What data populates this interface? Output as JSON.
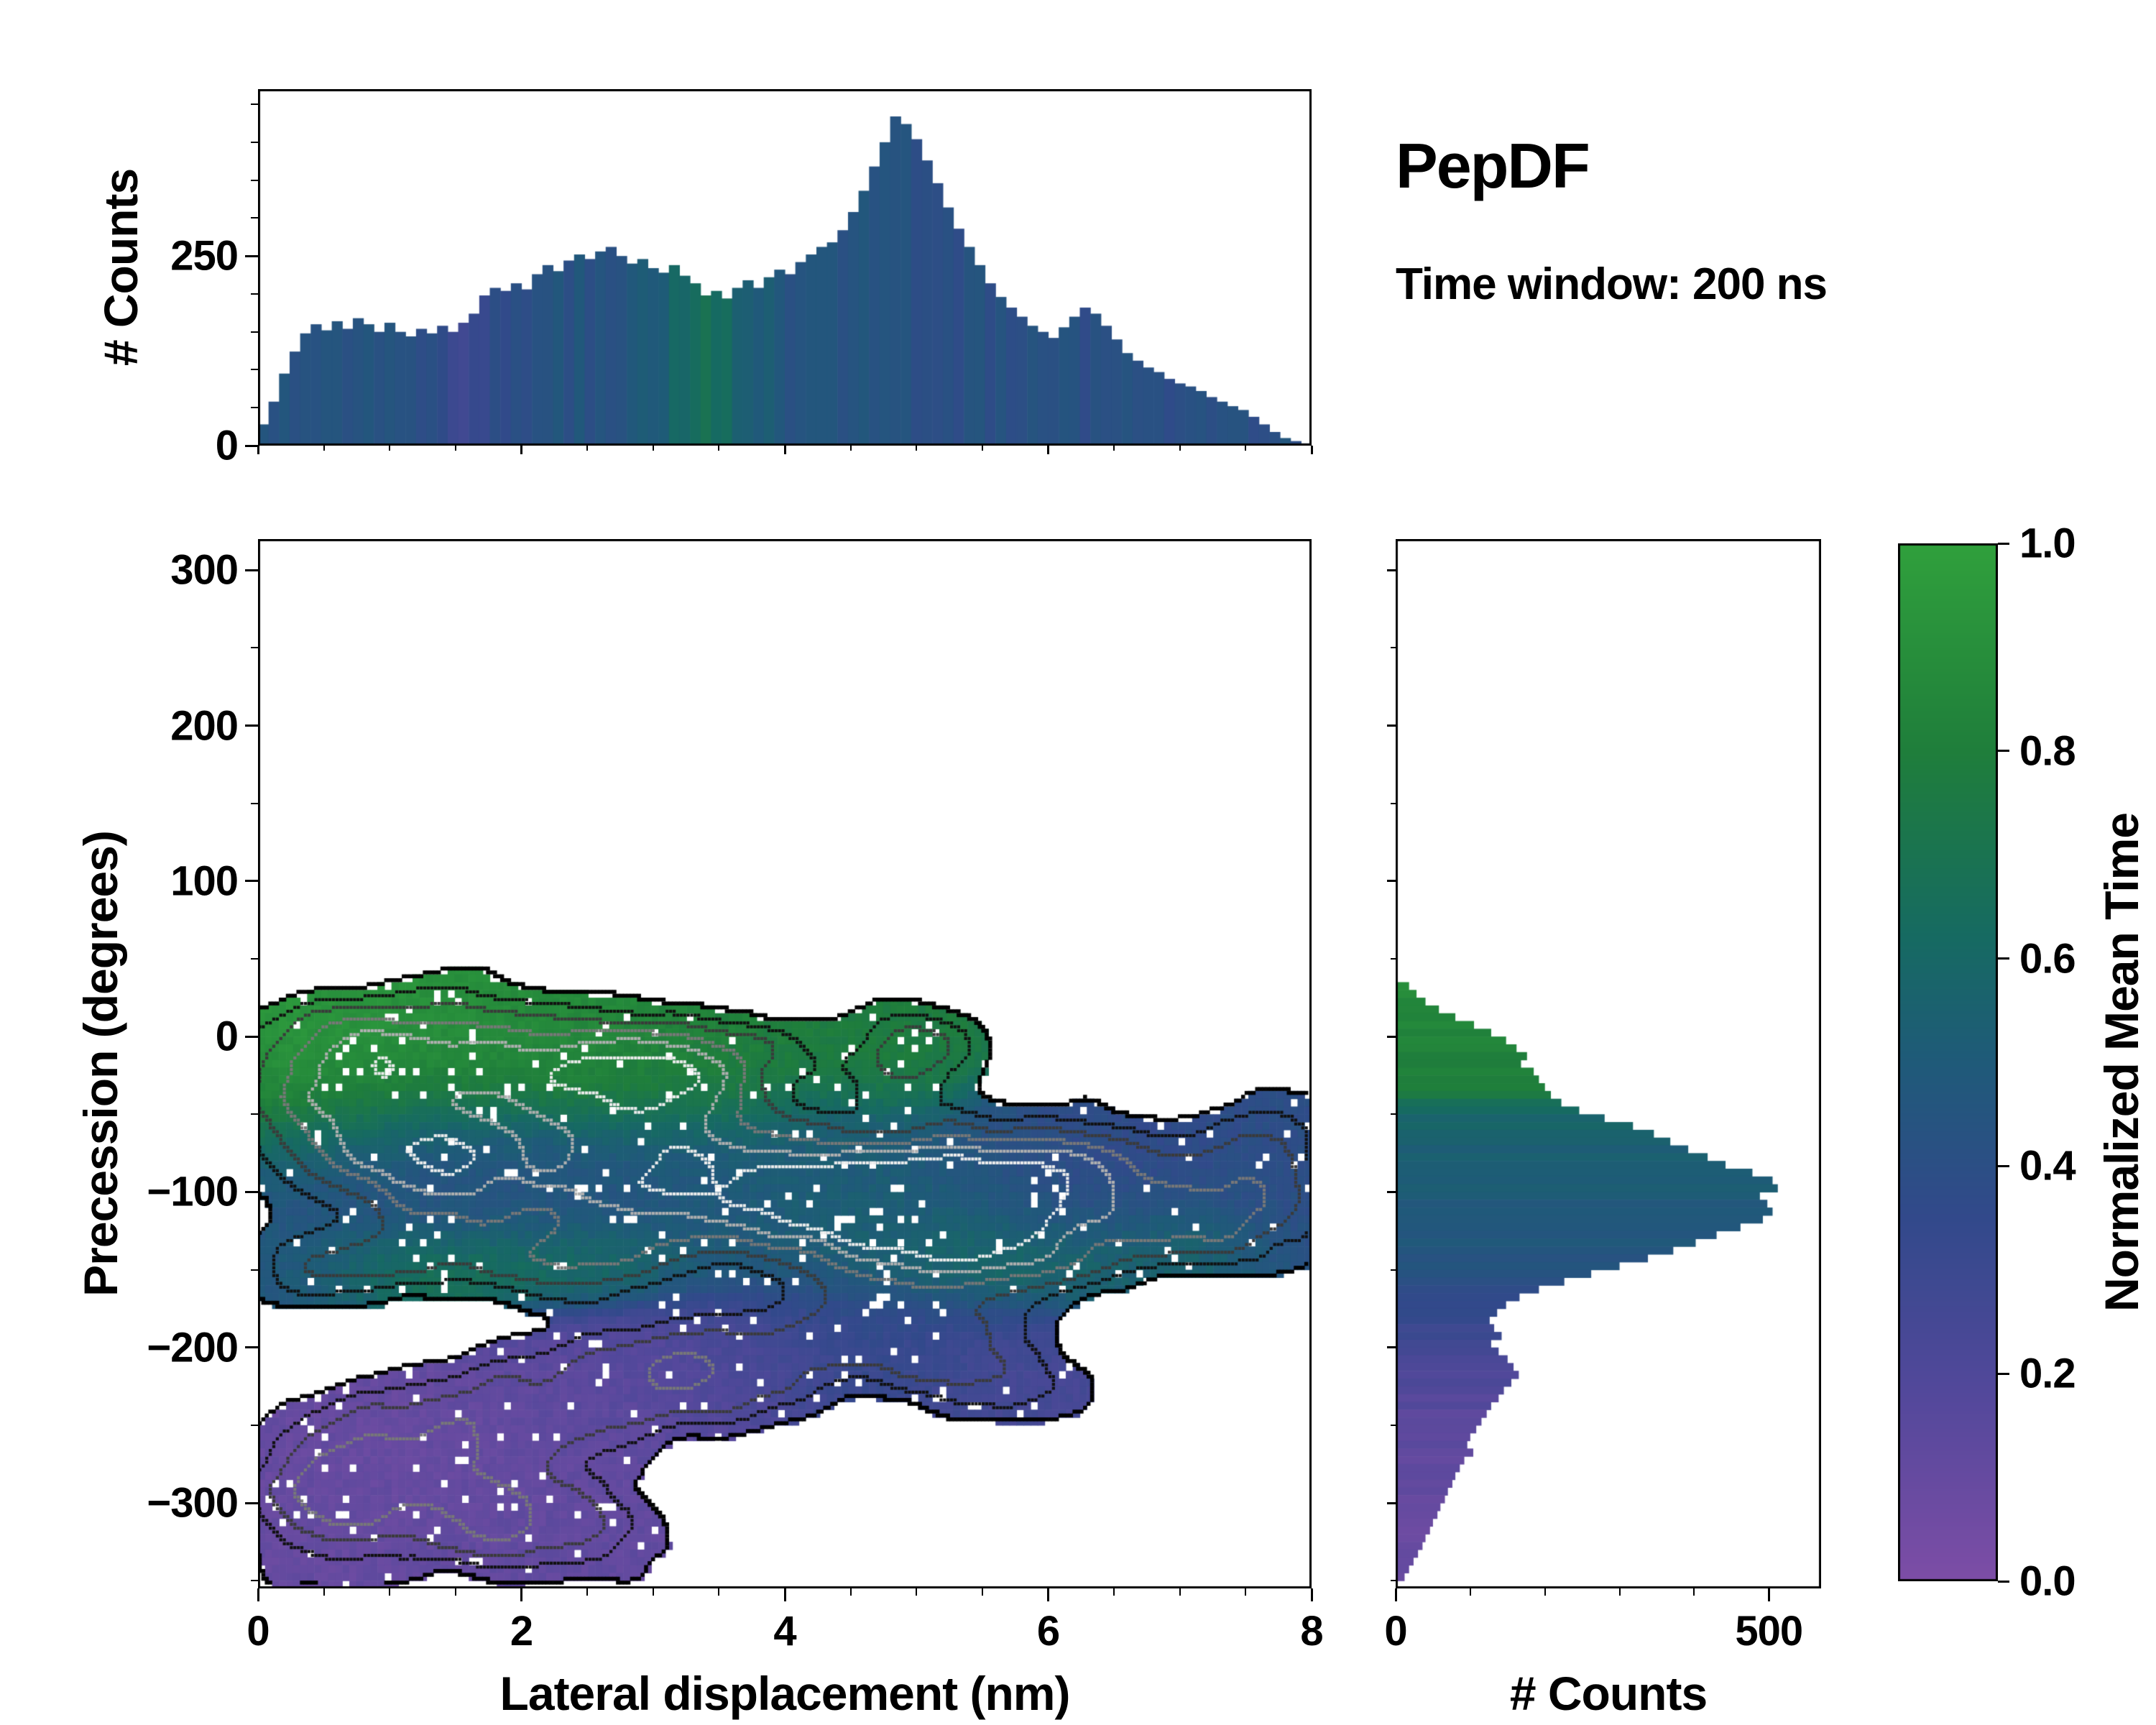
{
  "title": {
    "text": "PepDF",
    "subtitle": "Time window: 200 ns"
  },
  "axis_labels": {
    "main_x": "Lateral displacement (nm)",
    "main_y": "Precession (degrees)",
    "top_counts": "# Counts",
    "right_counts": "# Counts",
    "colorbar": "Normalized Mean Time"
  },
  "axes": {
    "main": {
      "xlim": [
        0,
        8
      ],
      "ylim": [
        -355,
        320
      ],
      "xticks": [
        0,
        2,
        4,
        6,
        8
      ],
      "yticks": [
        300,
        200,
        100,
        0,
        -100,
        -200,
        -300
      ],
      "x_minor": 0.5,
      "y_minor": 50
    },
    "top_hist": {
      "ylim": [
        0,
        470
      ],
      "yticks": [
        0,
        250
      ],
      "y_minor": 50
    },
    "right_hist": {
      "xlim": [
        0,
        570
      ],
      "xticks": [
        0,
        500
      ],
      "x_minor": 100
    },
    "colorbar": {
      "lim": [
        0,
        1
      ],
      "ticks": [
        0,
        0.2,
        0.4,
        0.6,
        0.8,
        1
      ]
    }
  },
  "chart_data": {
    "colormap": [
      [
        0,
        "#7d4da6"
      ],
      [
        0.18,
        "#53489b"
      ],
      [
        0.35,
        "#32498b"
      ],
      [
        0.5,
        "#1f5a79"
      ],
      [
        0.62,
        "#166a62"
      ],
      [
        0.8,
        "#1f7e3b"
      ],
      [
        1,
        "#30a03c"
      ]
    ],
    "top_histogram": {
      "type": "bar",
      "xlabel_shared": "Lateral displacement (nm)",
      "ylabel": "# Counts",
      "x_start": 0,
      "bin_width": 0.08,
      "counts": [
        28,
        58,
        95,
        124,
        148,
        160,
        152,
        164,
        154,
        168,
        160,
        150,
        162,
        150,
        144,
        154,
        148,
        158,
        150,
        162,
        174,
        198,
        208,
        204,
        214,
        206,
        226,
        238,
        230,
        244,
        252,
        246,
        256,
        262,
        250,
        240,
        246,
        234,
        228,
        238,
        224,
        214,
        198,
        204,
        194,
        208,
        218,
        208,
        222,
        232,
        226,
        242,
        252,
        262,
        268,
        284,
        308,
        336,
        368,
        400,
        434,
        424,
        404,
        376,
        346,
        314,
        286,
        262,
        238,
        214,
        196,
        182,
        170,
        158,
        150,
        142,
        156,
        170,
        182,
        174,
        158,
        140,
        122,
        112,
        103,
        97,
        88,
        82,
        78,
        72,
        64,
        58,
        52,
        47,
        38,
        28,
        18,
        10,
        6,
        3
      ],
      "time_knots": [
        [
          0,
          0.45
        ],
        [
          1.2,
          0.43
        ],
        [
          1.45,
          0.32
        ],
        [
          1.7,
          0.3
        ],
        [
          1.95,
          0.42
        ],
        [
          2.8,
          0.45
        ],
        [
          3.15,
          0.58
        ],
        [
          3.45,
          0.66
        ],
        [
          3.75,
          0.52
        ],
        [
          4.1,
          0.44
        ],
        [
          5.2,
          0.42
        ],
        [
          6.5,
          0.4
        ],
        [
          8,
          0.43
        ]
      ]
    },
    "right_histogram": {
      "type": "bar",
      "xlabel": "# Counts",
      "y_start": 35,
      "bin_height": 5,
      "counts": [
        18,
        28,
        40,
        58,
        80,
        105,
        128,
        148,
        162,
        176,
        168,
        185,
        192,
        200,
        208,
        222,
        246,
        280,
        318,
        346,
        368,
        392,
        418,
        442,
        478,
        505,
        512,
        488,
        498,
        505,
        492,
        462,
        430,
        402,
        372,
        338,
        300,
        262,
        226,
        192,
        166,
        148,
        136,
        126,
        132,
        142,
        128,
        138,
        150,
        158,
        165,
        155,
        145,
        138,
        128,
        122,
        115,
        108,
        100,
        96,
        104,
        92,
        86,
        80,
        76,
        70,
        66,
        60,
        56,
        50,
        46,
        40,
        36,
        30,
        24,
        18,
        12
      ],
      "time_knots": [
        [
          35,
          0.88
        ],
        [
          0,
          0.84
        ],
        [
          -35,
          0.78
        ],
        [
          -48,
          0.62
        ],
        [
          -60,
          0.55
        ],
        [
          -100,
          0.5
        ],
        [
          -145,
          0.46
        ],
        [
          -165,
          0.38
        ],
        [
          -190,
          0.3
        ],
        [
          -215,
          0.22
        ],
        [
          -240,
          0.16
        ],
        [
          -270,
          0.12
        ],
        [
          -310,
          0.1
        ],
        [
          -350,
          0.08
        ]
      ]
    },
    "density_map": {
      "type": "heatmap",
      "value_label": "Normalized Mean Time",
      "x_range": [
        0,
        8
      ],
      "y_range": [
        -355,
        320
      ],
      "grid": [
        150,
        135
      ],
      "fill_threshold": 0.32,
      "noise_amp": 0.22,
      "speckle_fraction": 0.045,
      "blob_format": [
        "x_nm",
        "y_deg",
        "sigma_x",
        "sigma_y",
        "weight",
        "norm_mean_time"
      ],
      "blobs": [
        [
          0.7,
          -20,
          0.95,
          48,
          1.0,
          0.93
        ],
        [
          2.2,
          -12,
          1.05,
          40,
          1.0,
          0.88
        ],
        [
          3.3,
          -25,
          0.85,
          38,
          0.9,
          0.8
        ],
        [
          4.9,
          -12,
          0.55,
          32,
          0.85,
          0.78
        ],
        [
          1.1,
          -80,
          1.0,
          46,
          0.9,
          0.42
        ],
        [
          2.9,
          -95,
          1.5,
          50,
          1.05,
          0.45
        ],
        [
          4.6,
          -105,
          1.15,
          42,
          1.3,
          0.55
        ],
        [
          6.2,
          -95,
          1.2,
          48,
          1.0,
          0.36
        ],
        [
          7.7,
          -90,
          0.55,
          45,
          0.8,
          0.4
        ],
        [
          0.4,
          -150,
          0.6,
          30,
          0.5,
          0.45
        ],
        [
          1.3,
          -150,
          0.8,
          26,
          0.55,
          0.74
        ],
        [
          2.5,
          -142,
          0.7,
          24,
          0.5,
          0.7
        ],
        [
          5.6,
          -140,
          0.9,
          30,
          0.65,
          0.72
        ],
        [
          7.0,
          -130,
          0.6,
          26,
          0.5,
          0.66
        ],
        [
          4.7,
          -195,
          0.95,
          42,
          0.8,
          0.34
        ],
        [
          5.7,
          -218,
          0.7,
          36,
          0.6,
          0.24
        ],
        [
          1.4,
          -268,
          1.05,
          48,
          0.9,
          0.1
        ],
        [
          2.6,
          -228,
          0.9,
          40,
          0.7,
          0.15
        ],
        [
          2.2,
          -318,
          0.95,
          38,
          0.75,
          0.12
        ],
        [
          3.6,
          -212,
          0.7,
          35,
          0.6,
          0.2
        ],
        [
          0.5,
          -302,
          0.65,
          45,
          0.75,
          0.1
        ]
      ],
      "contour_levels": [
        [
          0.32,
          "#000000"
        ],
        [
          0.52,
          "#101010"
        ],
        [
          0.72,
          "#3a3a3a"
        ],
        [
          0.95,
          "#787878"
        ],
        [
          1.15,
          "#b0b0b0"
        ],
        [
          1.35,
          "#ececec"
        ]
      ]
    }
  }
}
